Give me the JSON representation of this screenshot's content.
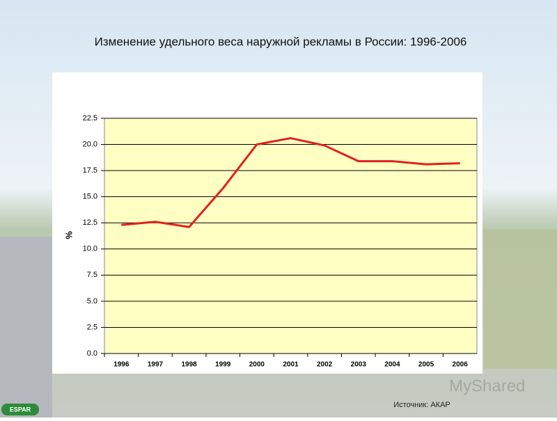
{
  "chart_data": {
    "type": "line",
    "title": "Изменение удельного веса наружной рекламы в России: 1996-2006",
    "y_label": "%",
    "categories": [
      "1996",
      "1997",
      "1998",
      "1999",
      "2000",
      "2001",
      "2002",
      "2003",
      "2004",
      "2005",
      "2006"
    ],
    "values": [
      12.3,
      12.6,
      12.1,
      15.8,
      20.0,
      20.6,
      19.9,
      18.4,
      18.4,
      18.1,
      18.2
    ],
    "color": "#e3201b",
    "ylim": [
      0,
      22.5
    ],
    "yticks": [
      {
        "value": 0,
        "label": "0.0"
      },
      2.5,
      {
        "value": 5,
        "label": "5.0"
      },
      7.5,
      {
        "value": 10,
        "label": "10.0"
      },
      12.5,
      {
        "value": 15,
        "label": "15.0"
      },
      17.5,
      {
        "value": 20,
        "label": "20.0"
      },
      22.5
    ],
    "grid": true,
    "source": "Источник: АКАР"
  },
  "logo": "ESPAR",
  "watermark": "MyShared"
}
